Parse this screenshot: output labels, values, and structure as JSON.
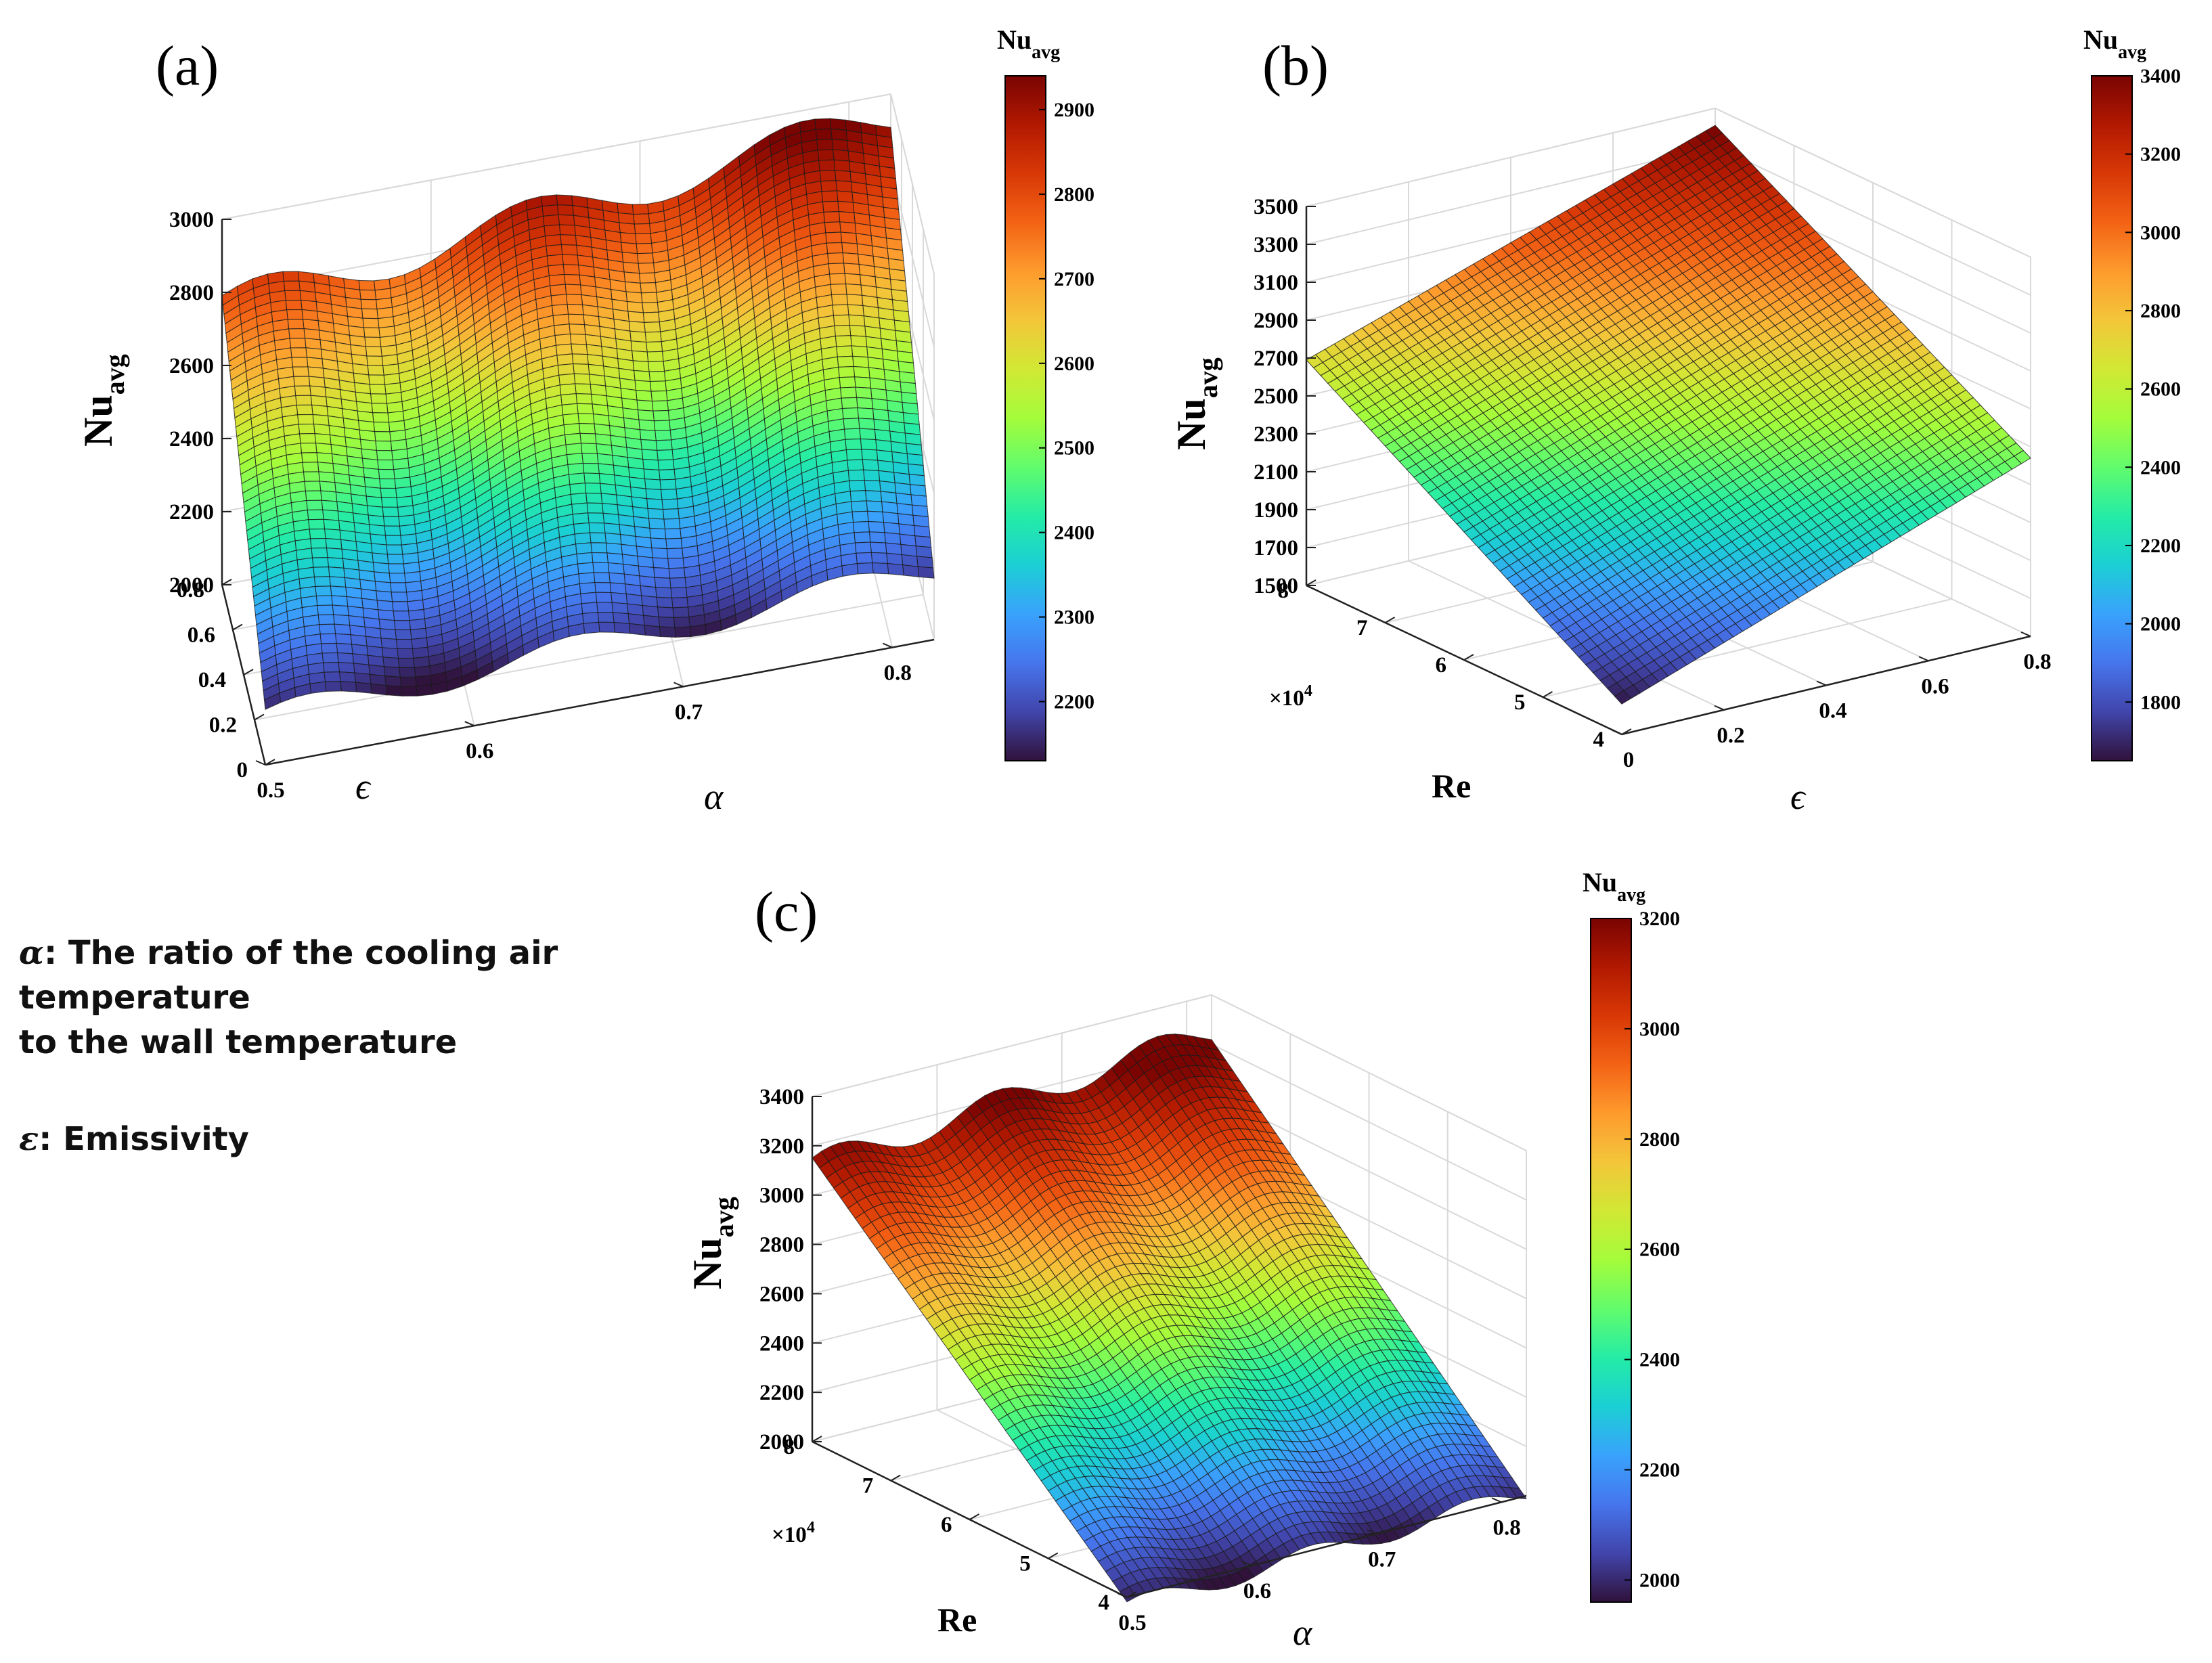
{
  "legend_notes": {
    "alpha_symbol": "α",
    "alpha_text": ": The ratio of the cooling air temperature",
    "alpha_text_line2": "to the wall temperature",
    "eps_symbol": "ε",
    "eps_text": ":  Emissivity"
  },
  "z_label": {
    "main": "Nu",
    "sub": "avg"
  },
  "colorbar_title": {
    "main": "Nu",
    "sub": "avg"
  },
  "colors": {
    "turbo": [
      "#30123b",
      "#4145ab",
      "#4675ed",
      "#39a2fc",
      "#1bcfd4",
      "#24eca6",
      "#61fc6c",
      "#a4fc3b",
      "#d1e834",
      "#f3c63a",
      "#fe9b2d",
      "#f36315",
      "#d93806",
      "#b11901",
      "#7a0402"
    ],
    "mesh_line": "#1a1a1a",
    "grid_line": "#d9d9d9",
    "axis_line": "#222222"
  },
  "chart_data": [
    {
      "type": "surface3d",
      "panel": "(a)",
      "title": "(a)",
      "xlabel": "α",
      "ylabel": "ϵ",
      "zlabel": "Nu_avg",
      "x_ticks": [
        "0.5",
        "0.6",
        "0.7",
        "0.8"
      ],
      "y_ticks": [
        "0",
        "0.2",
        "0.4",
        "0.6",
        "0.8"
      ],
      "z_ticks": [
        "2000",
        "2200",
        "2400",
        "2600",
        "2800",
        "3000"
      ],
      "x_range": [
        0.5,
        0.82
      ],
      "y_range": [
        0,
        0.8
      ],
      "z_range": [
        2000,
        3000
      ],
      "colorbar_ticks": [
        "2200",
        "2300",
        "2400",
        "2500",
        "2600",
        "2700",
        "2800",
        "2900"
      ],
      "colorbar_range": [
        2130,
        2940
      ],
      "corner_values": {
        "alpha_min_eps_min": 2130,
        "alpha_max_eps_min": 2190,
        "alpha_min_eps_max": 2760,
        "alpha_max_eps_max": 2940
      },
      "wave": {
        "amplitude": 55,
        "cycles": 2.5,
        "axis": "alpha"
      }
    },
    {
      "type": "surface3d",
      "panel": "(b)",
      "title": "(b)",
      "xlabel": "ϵ",
      "ylabel": "Re",
      "y_multiplier": "×10",
      "y_multiplier_exp": "4",
      "zlabel": "Nu_avg",
      "x_ticks": [
        "0",
        "0.2",
        "0.4",
        "0.6",
        "0.8"
      ],
      "y_ticks": [
        "4",
        "5",
        "6",
        "7",
        "8"
      ],
      "z_ticks": [
        "1500",
        "1700",
        "1900",
        "2100",
        "2300",
        "2500",
        "2700",
        "2900",
        "3100",
        "3300",
        "3500"
      ],
      "x_range": [
        0,
        0.8
      ],
      "y_range": [
        4,
        8
      ],
      "z_range": [
        1500,
        3500
      ],
      "colorbar_ticks": [
        "1800",
        "2000",
        "2200",
        "2400",
        "2600",
        "2800",
        "3000",
        "3200",
        "3400"
      ],
      "colorbar_range": [
        1650,
        3400
      ],
      "corner_values": {
        "eps_min_re_min": 1660,
        "eps_max_re_min": 2440,
        "eps_min_re_max": 2690,
        "eps_max_re_max": 3410
      },
      "wave": {
        "amplitude": 0,
        "cycles": 0,
        "axis": "none"
      }
    },
    {
      "type": "surface3d",
      "panel": "(c)",
      "title": "(c)",
      "xlabel": "α",
      "ylabel": "Re",
      "y_multiplier": "×10",
      "y_multiplier_exp": "4",
      "zlabel": "Nu_avg",
      "x_ticks": [
        "0.5",
        "0.6",
        "0.7",
        "0.8"
      ],
      "y_ticks": [
        "4",
        "5",
        "6",
        "7",
        "8"
      ],
      "z_ticks": [
        "2000",
        "2200",
        "2400",
        "2600",
        "2800",
        "3000",
        "3200",
        "3400"
      ],
      "x_range": [
        0.5,
        0.82
      ],
      "y_range": [
        4,
        8
      ],
      "z_range": [
        2000,
        3400
      ],
      "colorbar_ticks": [
        "2000",
        "2200",
        "2400",
        "2600",
        "2800",
        "3000",
        "3200"
      ],
      "colorbar_range": [
        1960,
        3200
      ],
      "corner_values": {
        "alpha_min_re_min": 1960,
        "alpha_max_re_min": 2010,
        "alpha_min_re_max": 3120,
        "alpha_max_re_max": 3250
      },
      "wave": {
        "amplitude": 55,
        "cycles": 2.5,
        "axis": "alpha"
      }
    }
  ]
}
